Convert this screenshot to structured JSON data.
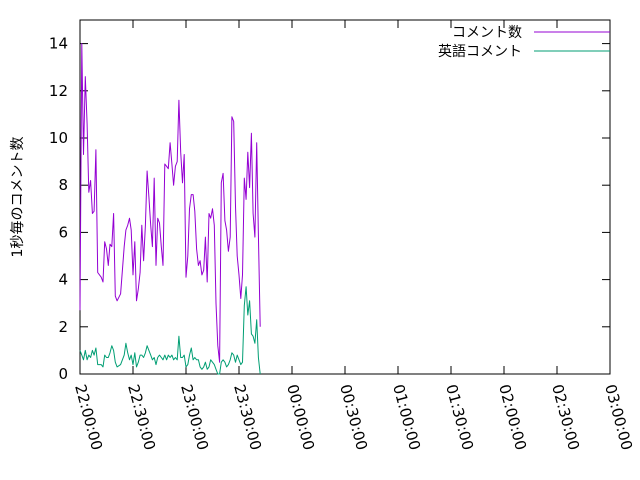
{
  "chart_data": {
    "type": "line",
    "ylabel": "1秒毎のコメント数",
    "xlabel": "",
    "ylim": [
      0,
      15
    ],
    "yticks": [
      0,
      2,
      4,
      6,
      8,
      10,
      12,
      14
    ],
    "xlim": [
      "22:00:00",
      "03:00:00"
    ],
    "xticks": [
      "22:00:00",
      "22:30:00",
      "23:00:00",
      "23:30:00",
      "00:00:00",
      "00:30:00",
      "01:00:00",
      "01:30:00",
      "02:00:00",
      "02:30:00",
      "03:00:00"
    ],
    "legend_position": "top-right",
    "grid": false,
    "series": [
      {
        "name": "コメント数",
        "color": "#9400d3",
        "points": [
          [
            "22:00:00",
            2.7
          ],
          [
            "22:01:00",
            14.0
          ],
          [
            "22:02:00",
            9.3
          ],
          [
            "22:03:00",
            12.6
          ],
          [
            "22:04:00",
            10.6
          ],
          [
            "22:05:00",
            7.7
          ],
          [
            "22:06:00",
            8.2
          ],
          [
            "22:07:00",
            6.8
          ],
          [
            "22:08:00",
            6.9
          ],
          [
            "22:09:00",
            9.5
          ],
          [
            "22:10:00",
            4.3
          ],
          [
            "22:12:00",
            4.1
          ],
          [
            "22:13:00",
            3.9
          ],
          [
            "22:14:00",
            5.6
          ],
          [
            "22:15:00",
            5.3
          ],
          [
            "22:16:00",
            4.6
          ],
          [
            "22:17:00",
            5.5
          ],
          [
            "22:18:00",
            5.4
          ],
          [
            "22:19:00",
            6.8
          ],
          [
            "22:20:00",
            3.3
          ],
          [
            "22:21:00",
            3.1
          ],
          [
            "22:23:00",
            3.4
          ],
          [
            "22:25:00",
            5.4
          ],
          [
            "22:26:00",
            6.1
          ],
          [
            "22:27:00",
            6.3
          ],
          [
            "22:28:00",
            6.6
          ],
          [
            "22:29:00",
            6.1
          ],
          [
            "22:30:00",
            4.2
          ],
          [
            "22:31:00",
            5.6
          ],
          [
            "22:32:00",
            3.1
          ],
          [
            "22:33:00",
            3.6
          ],
          [
            "22:34:00",
            4.3
          ],
          [
            "22:35:00",
            6.3
          ],
          [
            "22:36:00",
            4.8
          ],
          [
            "22:37:00",
            6.3
          ],
          [
            "22:38:00",
            8.6
          ],
          [
            "22:39:00",
            7.5
          ],
          [
            "22:40:00",
            6.3
          ],
          [
            "22:41:00",
            5.4
          ],
          [
            "22:42:00",
            8.3
          ],
          [
            "22:43:00",
            4.6
          ],
          [
            "22:44:00",
            6.6
          ],
          [
            "22:45:00",
            6.4
          ],
          [
            "22:46:00",
            5.4
          ],
          [
            "22:47:00",
            4.6
          ],
          [
            "22:48:00",
            8.9
          ],
          [
            "22:49:00",
            8.8
          ],
          [
            "22:50:00",
            8.7
          ],
          [
            "22:51:00",
            9.8
          ],
          [
            "22:52:00",
            8.9
          ],
          [
            "22:53:00",
            8.0
          ],
          [
            "22:54:00",
            8.8
          ],
          [
            "22:55:00",
            9.0
          ],
          [
            "22:56:00",
            11.6
          ],
          [
            "22:57:00",
            9.4
          ],
          [
            "22:58:00",
            8.1
          ],
          [
            "22:59:00",
            9.3
          ],
          [
            "23:00:00",
            4.1
          ],
          [
            "23:01:00",
            5.0
          ],
          [
            "23:02:00",
            7.0
          ],
          [
            "23:03:00",
            7.6
          ],
          [
            "23:04:00",
            7.6
          ],
          [
            "23:05:00",
            6.9
          ],
          [
            "23:06:00",
            5.3
          ],
          [
            "23:07:00",
            4.6
          ],
          [
            "23:08:00",
            4.8
          ],
          [
            "23:09:00",
            4.2
          ],
          [
            "23:10:00",
            4.4
          ],
          [
            "23:11:00",
            5.8
          ],
          [
            "23:12:00",
            3.9
          ],
          [
            "23:13:00",
            6.8
          ],
          [
            "23:14:00",
            6.6
          ],
          [
            "23:15:00",
            7.0
          ],
          [
            "23:16:00",
            6.3
          ],
          [
            "23:17:00",
            3.0
          ],
          [
            "23:18:00",
            1.2
          ],
          [
            "23:19:00",
            0.5
          ],
          [
            "23:20:00",
            8.1
          ],
          [
            "23:21:00",
            8.5
          ],
          [
            "23:22:00",
            6.5
          ],
          [
            "23:23:00",
            6.1
          ],
          [
            "23:24:00",
            5.2
          ],
          [
            "23:25:00",
            5.8
          ],
          [
            "23:26:00",
            10.9
          ],
          [
            "23:27:00",
            10.7
          ],
          [
            "23:28:00",
            7.1
          ],
          [
            "23:29:00",
            5.0
          ],
          [
            "23:30:00",
            4.2
          ],
          [
            "23:31:00",
            3.2
          ],
          [
            "23:32:00",
            4.2
          ],
          [
            "23:33:00",
            8.3
          ],
          [
            "23:34:00",
            7.4
          ],
          [
            "23:35:00",
            9.4
          ],
          [
            "23:36:00",
            7.9
          ],
          [
            "23:37:00",
            10.2
          ],
          [
            "23:38:00",
            6.8
          ],
          [
            "23:39:00",
            5.8
          ],
          [
            "23:40:00",
            9.8
          ],
          [
            "23:41:00",
            5.9
          ],
          [
            "23:42:00",
            2.0
          ]
        ]
      },
      {
        "name": "英語コメント",
        "color": "#009e73",
        "points": [
          [
            "22:00:00",
            1.0
          ],
          [
            "22:01:00",
            0.8
          ],
          [
            "22:02:00",
            0.6
          ],
          [
            "22:03:00",
            1.0
          ],
          [
            "22:04:00",
            0.6
          ],
          [
            "22:05:00",
            0.8
          ],
          [
            "22:06:00",
            0.7
          ],
          [
            "22:07:00",
            1.0
          ],
          [
            "22:08:00",
            0.8
          ],
          [
            "22:09:00",
            1.1
          ],
          [
            "22:10:00",
            0.4
          ],
          [
            "22:12:00",
            0.4
          ],
          [
            "22:13:00",
            0.3
          ],
          [
            "22:14:00",
            0.8
          ],
          [
            "22:15:00",
            0.7
          ],
          [
            "22:16:00",
            0.7
          ],
          [
            "22:17:00",
            0.9
          ],
          [
            "22:18:00",
            1.2
          ],
          [
            "22:19:00",
            1.0
          ],
          [
            "22:20:00",
            0.5
          ],
          [
            "22:21:00",
            0.3
          ],
          [
            "22:23:00",
            0.4
          ],
          [
            "22:25:00",
            0.8
          ],
          [
            "22:26:00",
            1.3
          ],
          [
            "22:27:00",
            0.9
          ],
          [
            "22:28:00",
            0.6
          ],
          [
            "22:29:00",
            0.8
          ],
          [
            "22:30:00",
            0.4
          ],
          [
            "22:31:00",
            0.9
          ],
          [
            "22:32:00",
            0.3
          ],
          [
            "22:33:00",
            0.5
          ],
          [
            "22:34:00",
            0.8
          ],
          [
            "22:35:00",
            0.8
          ],
          [
            "22:36:00",
            0.7
          ],
          [
            "22:37:00",
            0.9
          ],
          [
            "22:38:00",
            1.2
          ],
          [
            "22:39:00",
            1.0
          ],
          [
            "22:40:00",
            0.8
          ],
          [
            "22:41:00",
            0.6
          ],
          [
            "22:42:00",
            0.7
          ],
          [
            "22:43:00",
            0.4
          ],
          [
            "22:44:00",
            0.7
          ],
          [
            "22:45:00",
            0.8
          ],
          [
            "22:46:00",
            0.7
          ],
          [
            "22:47:00",
            0.6
          ],
          [
            "22:48:00",
            0.8
          ],
          [
            "22:49:00",
            0.6
          ],
          [
            "22:50:00",
            0.8
          ],
          [
            "22:51:00",
            0.7
          ],
          [
            "22:52:00",
            0.8
          ],
          [
            "22:53:00",
            0.6
          ],
          [
            "22:54:00",
            0.7
          ],
          [
            "22:55:00",
            0.6
          ],
          [
            "22:56:00",
            1.6
          ],
          [
            "22:57:00",
            0.7
          ],
          [
            "22:58:00",
            0.7
          ],
          [
            "22:59:00",
            0.8
          ],
          [
            "23:00:00",
            0.3
          ],
          [
            "23:01:00",
            0.4
          ],
          [
            "23:02:00",
            0.8
          ],
          [
            "23:03:00",
            1.1
          ],
          [
            "23:04:00",
            0.6
          ],
          [
            "23:05:00",
            0.7
          ],
          [
            "23:06:00",
            0.6
          ],
          [
            "23:07:00",
            0.6
          ],
          [
            "23:08:00",
            0.3
          ],
          [
            "23:09:00",
            0.2
          ],
          [
            "23:10:00",
            0.3
          ],
          [
            "23:11:00",
            0.5
          ],
          [
            "23:12:00",
            0.2
          ],
          [
            "23:13:00",
            0.3
          ],
          [
            "23:14:00",
            0.6
          ],
          [
            "23:15:00",
            0.5
          ],
          [
            "23:16:00",
            0.4
          ],
          [
            "23:17:00",
            0.2
          ],
          [
            "23:18:00",
            0.0
          ],
          [
            "23:19:00",
            0.0
          ],
          [
            "23:20:00",
            0.5
          ],
          [
            "23:21:00",
            0.6
          ],
          [
            "23:22:00",
            0.5
          ],
          [
            "23:23:00",
            0.3
          ],
          [
            "23:24:00",
            0.4
          ],
          [
            "23:25:00",
            0.6
          ],
          [
            "23:26:00",
            0.9
          ],
          [
            "23:27:00",
            0.8
          ],
          [
            "23:28:00",
            0.5
          ],
          [
            "23:29:00",
            0.8
          ],
          [
            "23:30:00",
            0.6
          ],
          [
            "23:31:00",
            0.4
          ],
          [
            "23:32:00",
            0.5
          ],
          [
            "23:33:00",
            2.9
          ],
          [
            "23:34:00",
            3.7
          ],
          [
            "23:35:00",
            2.5
          ],
          [
            "23:36:00",
            3.1
          ],
          [
            "23:37:00",
            1.7
          ],
          [
            "23:38:00",
            1.6
          ],
          [
            "23:39:00",
            1.3
          ],
          [
            "23:40:00",
            2.3
          ],
          [
            "23:41:00",
            0.7
          ],
          [
            "23:42:00",
            0.0
          ]
        ]
      }
    ]
  }
}
